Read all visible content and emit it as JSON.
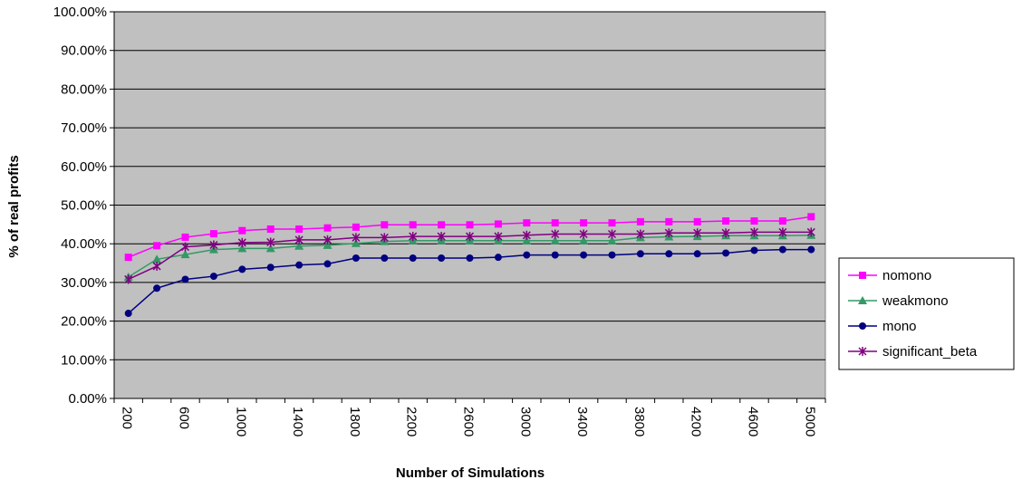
{
  "chart_data": {
    "type": "line",
    "title": "",
    "xlabel": "Number of Simulations",
    "ylabel": "% of real profits",
    "ylim": [
      0,
      100
    ],
    "yticks": [
      "0.00%",
      "10.00%",
      "20.00%",
      "30.00%",
      "40.00%",
      "50.00%",
      "60.00%",
      "70.00%",
      "80.00%",
      "90.00%",
      "100.00%"
    ],
    "x": [
      200,
      400,
      600,
      800,
      1000,
      1200,
      1400,
      1600,
      1800,
      2000,
      2200,
      2400,
      2600,
      2800,
      3000,
      3200,
      3400,
      3600,
      3800,
      4000,
      4200,
      4400,
      4600,
      4800,
      5000
    ],
    "xtick_labels": [
      "200",
      "600",
      "1000",
      "1400",
      "1800",
      "2200",
      "2600",
      "3000",
      "3400",
      "3800",
      "4200",
      "4600",
      "5000"
    ],
    "grid": true,
    "plot_background": "#c0c0c0",
    "legend_position": "right",
    "series": [
      {
        "name": "nomono",
        "color": "#ff00ff",
        "marker": "square",
        "values": [
          36.5,
          39.5,
          41.7,
          42.6,
          43.4,
          43.8,
          43.8,
          44.1,
          44.3,
          44.9,
          44.9,
          44.9,
          44.9,
          45.1,
          45.4,
          45.4,
          45.4,
          45.4,
          45.7,
          45.7,
          45.7,
          45.9,
          45.9,
          45.9,
          47.0
        ]
      },
      {
        "name": "weakmono",
        "color": "#339966",
        "marker": "triangle",
        "values": [
          31.4,
          36.0,
          37.2,
          38.5,
          38.8,
          38.8,
          39.4,
          39.6,
          40.1,
          40.6,
          40.8,
          40.8,
          40.8,
          40.8,
          40.8,
          40.8,
          40.8,
          40.8,
          41.6,
          41.8,
          41.9,
          42.1,
          42.1,
          42.1,
          42.2
        ]
      },
      {
        "name": "mono",
        "color": "#000080",
        "marker": "circle",
        "values": [
          22.0,
          28.5,
          30.8,
          31.6,
          33.4,
          33.9,
          34.5,
          34.8,
          36.3,
          36.3,
          36.3,
          36.3,
          36.3,
          36.5,
          37.1,
          37.1,
          37.1,
          37.1,
          37.4,
          37.4,
          37.4,
          37.6,
          38.3,
          38.5,
          38.5
        ]
      },
      {
        "name": "significant_beta",
        "color": "#800080",
        "marker": "star",
        "values": [
          30.8,
          34.2,
          39.2,
          39.7,
          40.3,
          40.4,
          41.0,
          41.0,
          41.6,
          41.6,
          41.9,
          41.9,
          41.9,
          41.9,
          42.2,
          42.5,
          42.5,
          42.5,
          42.5,
          42.8,
          42.8,
          42.8,
          43.0,
          43.0,
          43.0
        ]
      }
    ]
  }
}
